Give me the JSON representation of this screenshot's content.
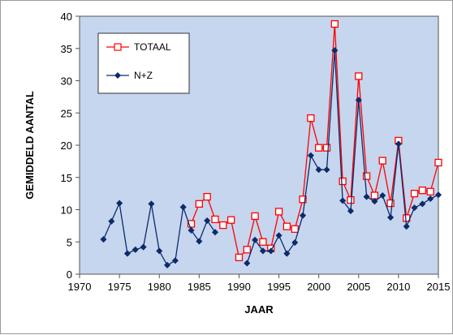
{
  "chart_data": {
    "type": "line",
    "title": "",
    "xlabel": "JAAR",
    "ylabel": "GEMIDDELD AANTAL",
    "xlim": [
      1970,
      2015
    ],
    "ylim": [
      0,
      40
    ],
    "xticks": [
      1970,
      1975,
      1980,
      1985,
      1990,
      1995,
      2000,
      2005,
      2010,
      2015
    ],
    "yticks": [
      0,
      5,
      10,
      15,
      20,
      25,
      30,
      35,
      40
    ],
    "grid": false,
    "legend_position": "top-left",
    "plot_background": "#c5d6ee",
    "series": [
      {
        "name": "TOTAAL",
        "color": "#ff0000",
        "marker": "open-square",
        "x": [
          1984,
          1985,
          1986,
          1987,
          1988,
          1989,
          1990,
          1991,
          1992,
          1993,
          1994,
          1995,
          1996,
          1997,
          1998,
          1999,
          2000,
          2001,
          2002,
          2003,
          2004,
          2005,
          2006,
          2007,
          2008,
          2009,
          2010,
          2011,
          2012,
          2013,
          2014,
          2015
        ],
        "values": [
          7.8,
          10.9,
          12.0,
          8.5,
          7.6,
          8.4,
          2.6,
          3.8,
          9.0,
          5.0,
          4.0,
          9.7,
          7.4,
          7.0,
          11.6,
          24.2,
          19.6,
          19.6,
          38.8,
          14.4,
          11.5,
          30.7,
          15.2,
          12.2,
          17.6,
          11.0,
          20.7,
          8.7,
          12.5,
          13.0,
          12.8,
          17.3
        ]
      },
      {
        "name": "N+Z",
        "color": "#0d2a6b",
        "marker": "filled-diamond",
        "x": [
          1973,
          1974,
          1975,
          1976,
          1977,
          1978,
          1979,
          1980,
          1981,
          1982,
          1983,
          1984,
          1985,
          1986,
          1987,
          1988,
          1989,
          1990,
          1991,
          1992,
          1993,
          1994,
          1995,
          1996,
          1997,
          1998,
          1999,
          2000,
          2001,
          2002,
          2003,
          2004,
          2005,
          2006,
          2007,
          2008,
          2009,
          2010,
          2011,
          2012,
          2013,
          2014,
          2015
        ],
        "values": [
          5.4,
          8.2,
          11.0,
          3.2,
          3.8,
          4.2,
          10.9,
          3.6,
          1.4,
          2.1,
          10.4,
          6.8,
          5.1,
          8.3,
          6.5,
          null,
          null,
          null,
          1.7,
          5.3,
          3.6,
          3.6,
          6.0,
          3.2,
          4.9,
          9.1,
          18.4,
          16.2,
          16.2,
          34.7,
          11.4,
          9.8,
          27.0,
          12.0,
          11.3,
          12.2,
          8.8,
          20.2,
          7.4,
          10.3,
          10.9,
          11.7,
          12.3
        ]
      }
    ]
  }
}
